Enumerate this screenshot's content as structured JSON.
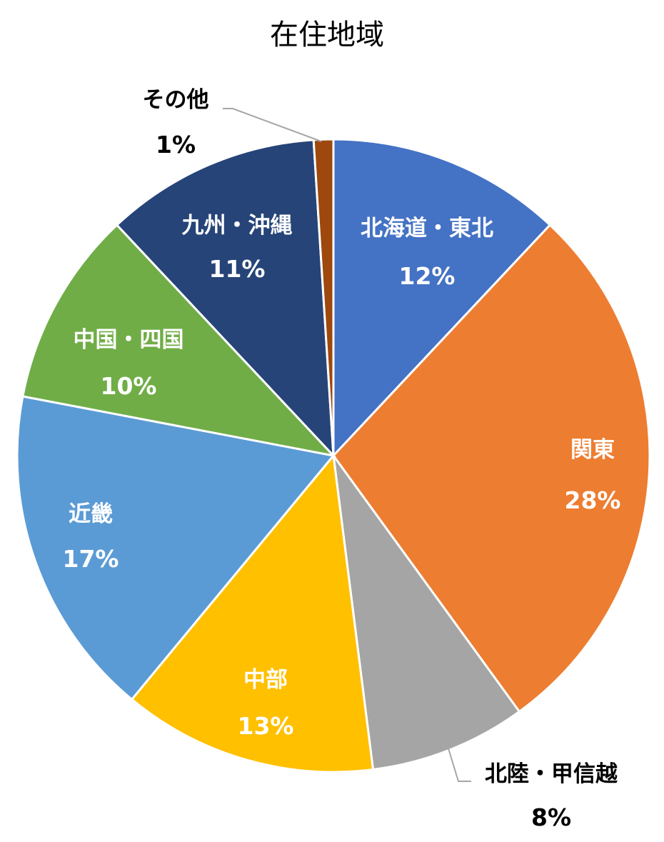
{
  "chart_data": {
    "type": "pie",
    "title": "在住地域",
    "start_angle_deg": 0,
    "direction": "clockwise",
    "slices": [
      {
        "label": "北海道・東北",
        "value": 12,
        "display": "12%",
        "color": "#4472C4"
      },
      {
        "label": "関東",
        "value": 28,
        "display": "28%",
        "color": "#ED7D31"
      },
      {
        "label": "北陸・甲信越",
        "value": 8,
        "display": "8%",
        "color": "#A5A5A5"
      },
      {
        "label": "中部",
        "value": 13,
        "display": "13%",
        "color": "#FFC000"
      },
      {
        "label": "近畿",
        "value": 17,
        "display": "17%",
        "color": "#5B9BD5"
      },
      {
        "label": "中国・四国",
        "value": 10,
        "display": "10%",
        "color": "#70AD47"
      },
      {
        "label": "九州・沖縄",
        "value": 11,
        "display": "11%",
        "color": "#264478"
      },
      {
        "label": "その他",
        "value": 1,
        "display": "1%",
        "color": "#9E480E"
      }
    ]
  }
}
